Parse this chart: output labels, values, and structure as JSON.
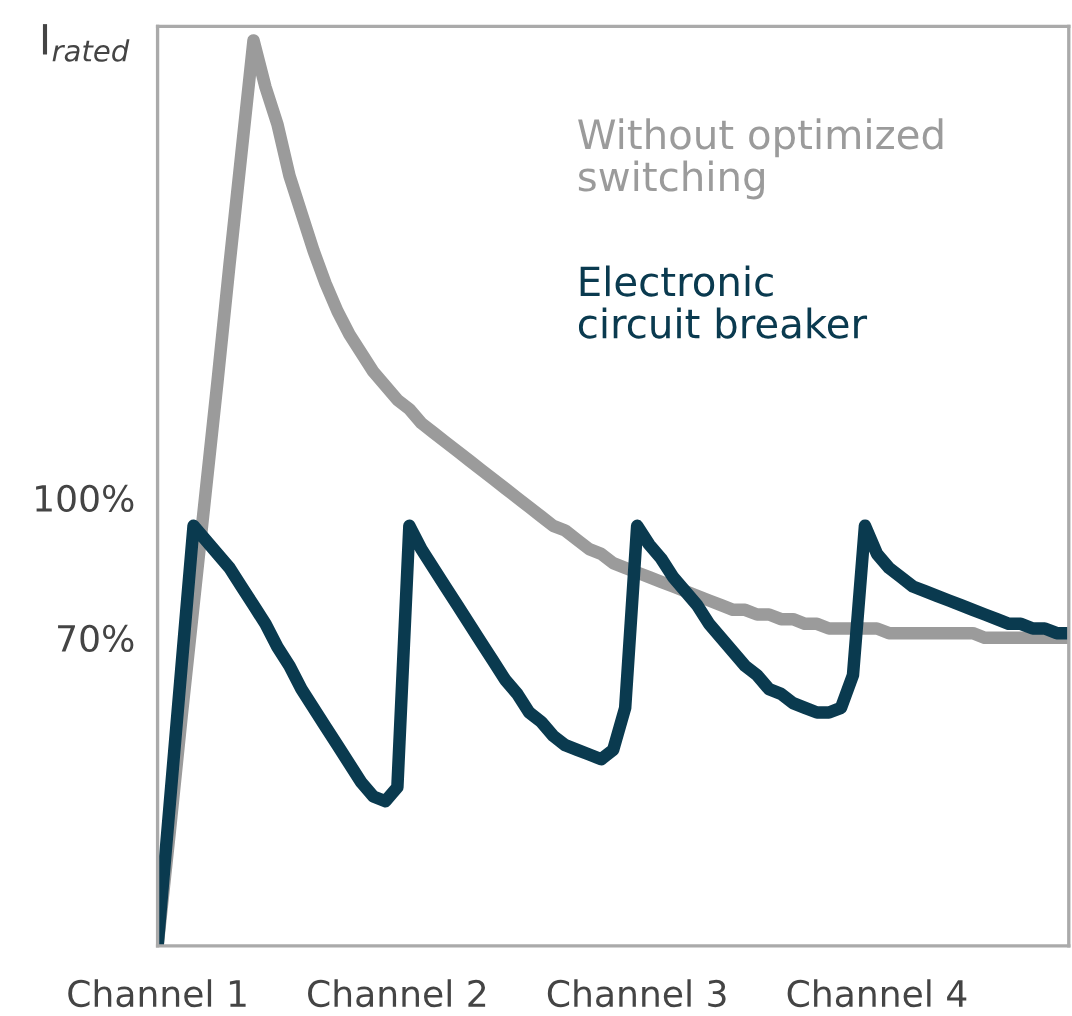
{
  "chart_data": {
    "type": "line",
    "ylabel": "I$_{rated}$",
    "categories": [
      "Channel 1",
      null,
      null,
      null,
      null,
      null,
      null,
      null,
      null,
      null,
      null,
      null,
      null,
      null,
      null,
      null,
      null,
      null,
      null,
      null,
      "Channel 2",
      null,
      null,
      null,
      null,
      null,
      null,
      null,
      null,
      null,
      null,
      null,
      null,
      null,
      null,
      null,
      null,
      null,
      null,
      null,
      "Channel 3",
      null,
      null,
      null,
      null,
      null,
      null,
      null,
      null,
      null,
      null,
      null,
      null,
      null,
      null,
      null,
      null,
      null,
      null,
      null,
      "Channel 4",
      null,
      null,
      null,
      null,
      null,
      null,
      null,
      null,
      null,
      null,
      null,
      null,
      null,
      null,
      null,
      null
    ],
    "ylim": [
      4,
      201
    ],
    "yticks": [
      {
        "value": 70,
        "label": "70%"
      },
      {
        "value": 100,
        "label": "100%"
      }
    ],
    "grid": false,
    "legend": false,
    "marker": "none",
    "line_style": "solid",
    "series": [
      {
        "name": "Without optimized\nswitching",
        "color": "#9b9b9b",
        "values": [
          4,
          28,
          53,
          77,
          101,
          125,
          150,
          174,
          198,
          188,
          180,
          169,
          161,
          153,
          146,
          140,
          135,
          131,
          127,
          124,
          121,
          119,
          116,
          114,
          112,
          110,
          108,
          106,
          104,
          102,
          100,
          98,
          96,
          94,
          93,
          91,
          89,
          88,
          86,
          85,
          84,
          83,
          82,
          81,
          80,
          79,
          78,
          77,
          76,
          76,
          75,
          75,
          74,
          74,
          73,
          73,
          72,
          72,
          72,
          72,
          72,
          71,
          71,
          71,
          71,
          71,
          71,
          71,
          71,
          70,
          70,
          70,
          70,
          70,
          70,
          70,
          70
        ]
      },
      {
        "name": "Electronic\ncircuit breaker",
        "color": "#0a3a4f",
        "values": [
          4,
          34,
          64,
          94,
          91,
          88,
          85,
          81,
          77,
          73,
          68,
          64,
          59,
          55,
          51,
          47,
          43,
          39,
          36,
          35,
          38,
          94,
          89,
          85,
          81,
          77,
          73,
          69,
          65,
          61,
          58,
          54,
          52,
          49,
          47,
          46,
          45,
          44,
          46,
          55,
          94,
          90,
          87,
          83,
          80,
          77,
          73,
          70,
          67,
          64,
          62,
          59,
          58,
          56,
          55,
          54,
          54,
          55,
          62,
          94,
          88,
          85,
          83,
          81,
          80,
          79,
          78,
          77,
          76,
          75,
          74,
          73,
          73,
          72,
          72,
          71,
          71
        ]
      }
    ]
  }
}
